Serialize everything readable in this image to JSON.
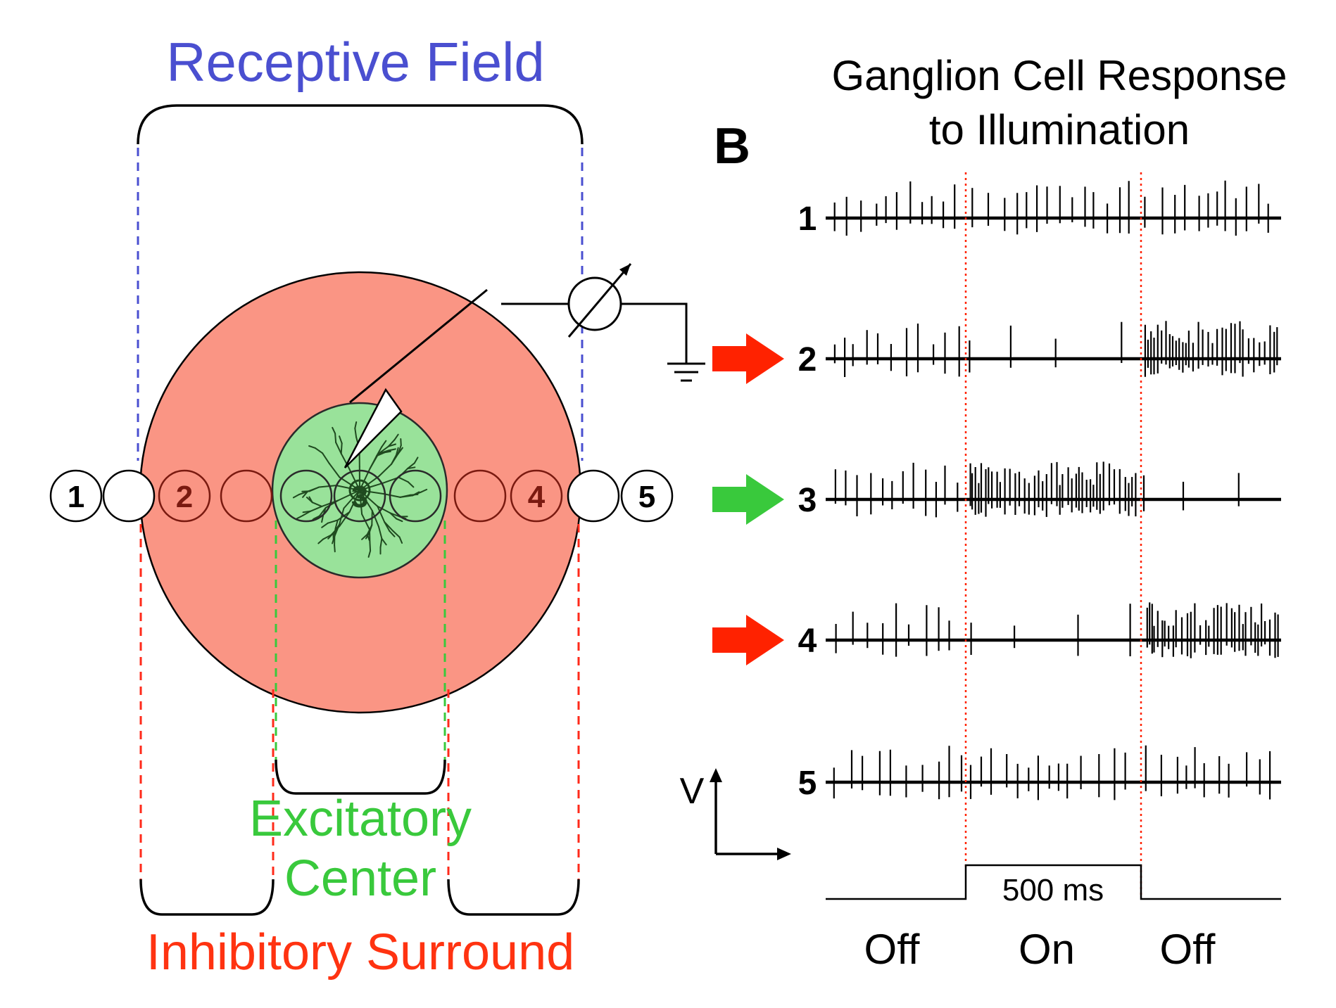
{
  "receptive_field": {
    "title": "Receptive Field",
    "center_label_line1": "Excitatory",
    "center_label_line2": "Center",
    "surround_label": "Inhibitory Surround",
    "position_labels": [
      "1",
      "2",
      "3",
      "4",
      "5"
    ]
  },
  "response_panel": {
    "panel_letter": "B",
    "title_line1": "Ganglion Cell Response",
    "title_line2": "to Illumination",
    "traces": [
      {
        "label": "1",
        "arrow": "none",
        "off1_rate": "medium",
        "on_rate": "medium",
        "off2_rate": "medium"
      },
      {
        "label": "2",
        "arrow": "red",
        "off1_rate": "medium",
        "on_rate": "low",
        "off2_rate": "high"
      },
      {
        "label": "3",
        "arrow": "green",
        "off1_rate": "medium",
        "on_rate": "high",
        "off2_rate": "low"
      },
      {
        "label": "4",
        "arrow": "red",
        "off1_rate": "medium",
        "on_rate": "low",
        "off2_rate": "high"
      },
      {
        "label": "5",
        "arrow": "none",
        "off1_rate": "medium",
        "on_rate": "medium",
        "off2_rate": "medium"
      }
    ],
    "axis_label_v": "V",
    "stimulus_duration_label": "500 ms",
    "periods": [
      "Off",
      "On",
      "Off"
    ]
  },
  "colors": {
    "title_blue": "#4a4fd0",
    "excitatory_green": "#39c93c",
    "inhibitory_red": "#ff3311",
    "surround_fill": "#fa9584",
    "center_fill": "#99e29a",
    "dendrite": "#1f4a1f",
    "stim_marker": "#ff2200",
    "dash_blue": "#4a4fd0",
    "dash_red": "#ff2a1a",
    "dash_green": "#39c93c"
  }
}
